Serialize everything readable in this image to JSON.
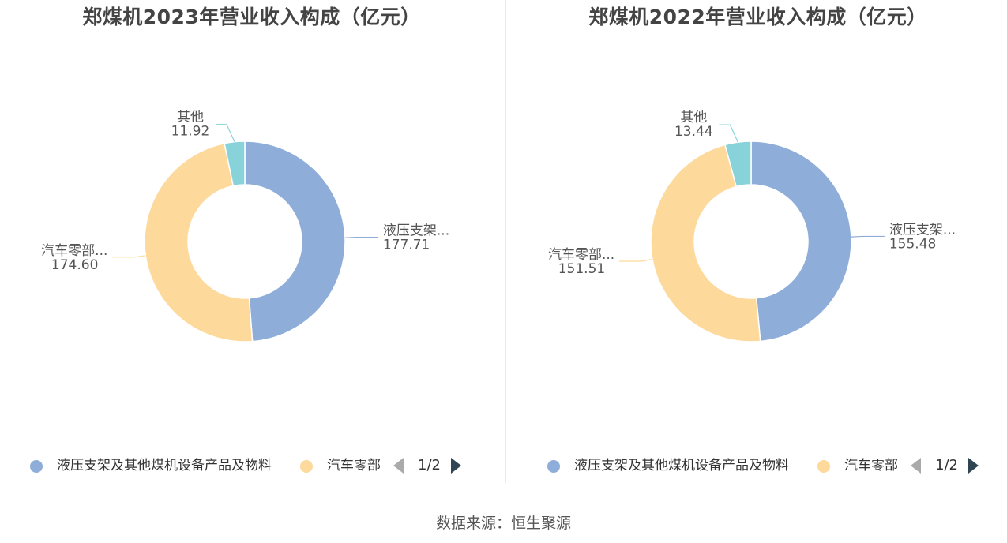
{
  "chart_data": [
    {
      "type": "pie",
      "title": "郑煤机2023年营业收入构成（亿元）",
      "categories": [
        "液压支架及其他煤机设备产品及物料",
        "汽车零部件",
        "其他"
      ],
      "short_labels": [
        "液压支架...",
        "汽车零部...",
        "其他"
      ],
      "value_labels": [
        "177.71",
        "174.60",
        "11.92"
      ],
      "values": [
        177.71,
        174.6,
        11.92
      ],
      "colors": [
        "#8eadd9",
        "#fdd99b",
        "#87d3d9"
      ],
      "legend_position": "bottom",
      "legend_items": [
        "液压支架及其他煤机设备产品及物料",
        "汽车零部"
      ],
      "legend_page": "1/2"
    },
    {
      "type": "pie",
      "title": "郑煤机2022年营业收入构成（亿元）",
      "categories": [
        "液压支架及其他煤机设备产品及物料",
        "汽车零部件",
        "其他"
      ],
      "short_labels": [
        "液压支架...",
        "汽车零部...",
        "其他"
      ],
      "value_labels": [
        "155.48",
        "151.51",
        "13.44"
      ],
      "values": [
        155.48,
        151.51,
        13.44
      ],
      "colors": [
        "#8eadd9",
        "#fdd99b",
        "#87d3d9"
      ],
      "legend_position": "bottom",
      "legend_items": [
        "液压支架及其他煤机设备产品及物料",
        "汽车零部"
      ],
      "legend_page": "1/2"
    }
  ],
  "footer": {
    "source": "数据来源：恒生聚源"
  },
  "icons": {
    "prev": "caret-left-icon",
    "next": "caret-right-icon",
    "legend_marker": "circle-marker-icon"
  }
}
